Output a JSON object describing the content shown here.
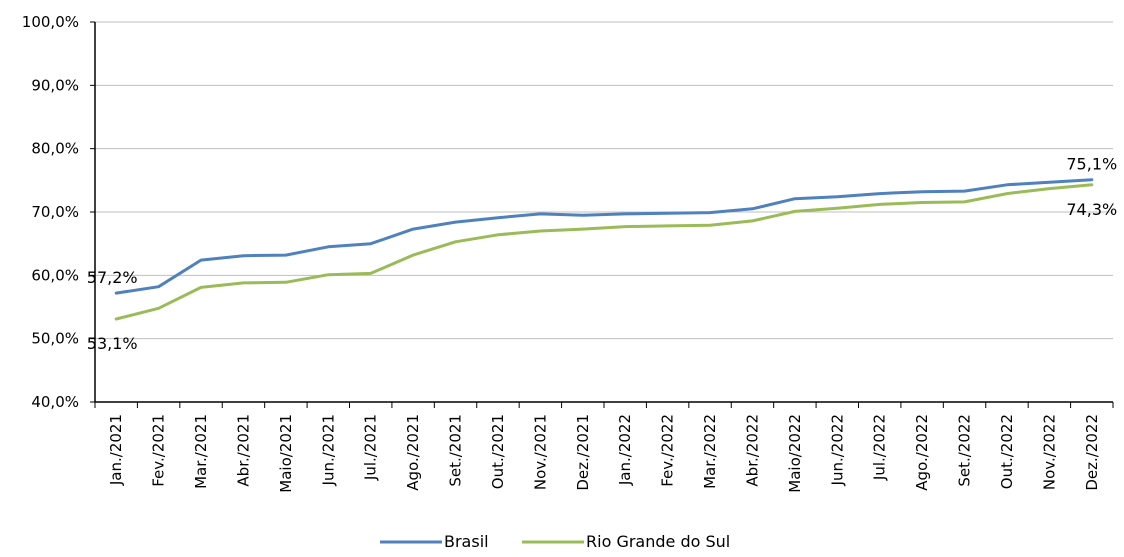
{
  "chart_data": {
    "type": "line",
    "categories": [
      "Jan./2021",
      "Fev./2021",
      "Mar./2021",
      "Abr./2021",
      "Maio/2021",
      "Jun./2021",
      "Jul./2021",
      "Ago./2021",
      "Set./2021",
      "Out./2021",
      "Nov./2021",
      "Dez./2021",
      "Jan./2022",
      "Fev./2022",
      "Mar./2022",
      "Abr./2022",
      "Maio/2022",
      "Jun./2022",
      "Jul./2022",
      "Ago./2022",
      "Set./2022",
      "Out./2022",
      "Nov./2022",
      "Dez./2022"
    ],
    "series": [
      {
        "name": "Brasil",
        "color": "#4F81BD",
        "values": [
          57.2,
          58.2,
          62.4,
          63.1,
          63.2,
          64.5,
          65.0,
          67.3,
          68.4,
          69.1,
          69.7,
          69.5,
          69.7,
          69.8,
          69.9,
          70.5,
          72.1,
          72.4,
          72.9,
          73.2,
          73.3,
          74.3,
          74.7,
          75.1
        ]
      },
      {
        "name": "Rio Grande do Sul",
        "color": "#9BBB59",
        "values": [
          53.1,
          54.8,
          58.1,
          58.8,
          58.9,
          60.1,
          60.3,
          63.2,
          65.3,
          66.4,
          67.0,
          67.3,
          67.7,
          67.8,
          67.9,
          68.6,
          70.1,
          70.6,
          71.2,
          71.5,
          71.6,
          72.9,
          73.7,
          74.3
        ]
      }
    ],
    "ylim": [
      40,
      100
    ],
    "y_ticks": [
      "40,0%",
      "50,0%",
      "60,0%",
      "70,0%",
      "80,0%",
      "90,0%",
      "100,0%"
    ],
    "grid": true,
    "legend_position": "bottom",
    "annotations": [
      {
        "text": "57,2%",
        "series": "Brasil",
        "point": 0
      },
      {
        "text": "53,1%",
        "series": "Rio Grande do Sul",
        "point": 0
      },
      {
        "text": "75,1%",
        "series": "Brasil",
        "point": 23
      },
      {
        "text": "74,3%",
        "series": "Rio Grande do Sul",
        "point": 23
      }
    ]
  }
}
